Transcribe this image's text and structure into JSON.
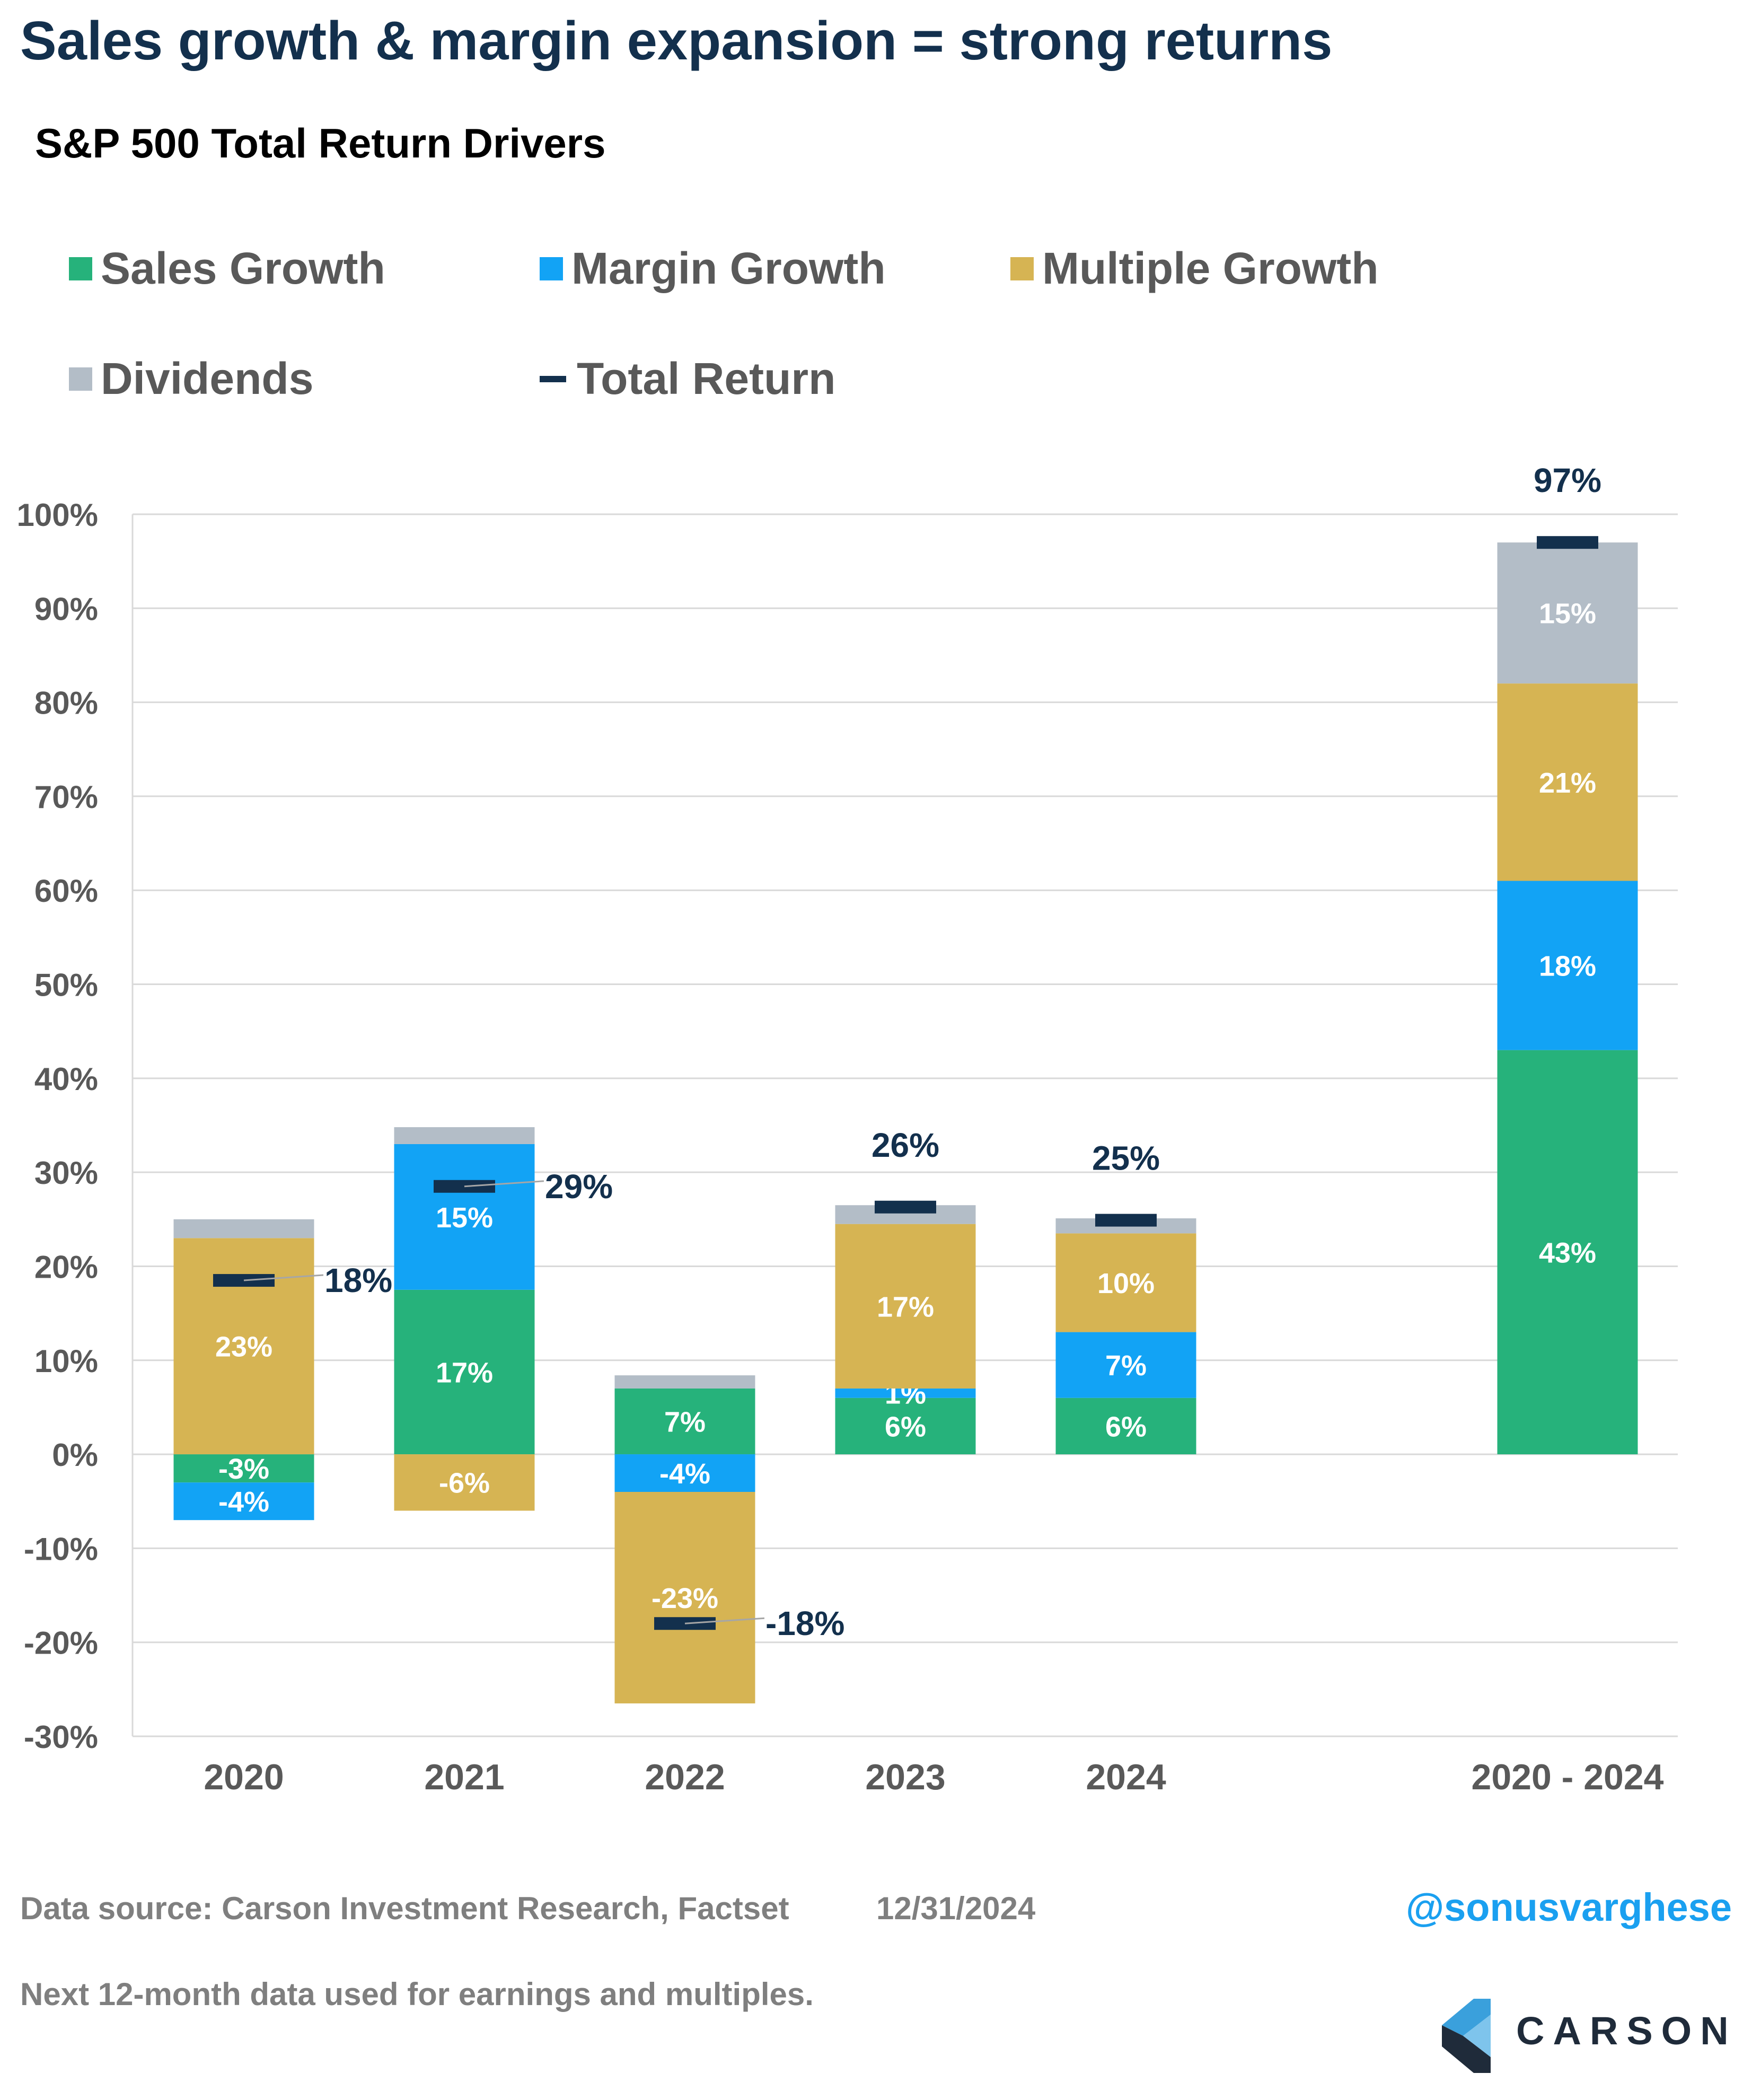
{
  "title": "Sales growth & margin expansion = strong returns",
  "subtitle": "S&P 500 Total Return Drivers",
  "legend": [
    {
      "label": "Sales Growth",
      "color": "#26b27b",
      "kind": "box"
    },
    {
      "label": "Margin Growth",
      "color": "#12a3f5",
      "kind": "box"
    },
    {
      "label": "Multiple Growth",
      "color": "#d6b453",
      "kind": "box"
    },
    {
      "label": "Dividends",
      "color": "#b3bdc7",
      "kind": "box"
    },
    {
      "label": "Total Return",
      "color": "#13304d",
      "kind": "dash"
    }
  ],
  "chart_data": {
    "type": "bar",
    "stacked": true,
    "categories": [
      "2020",
      "2021",
      "2022",
      "2023",
      "2024",
      "2020 - 2024"
    ],
    "series": [
      {
        "name": "Sales Growth",
        "color": "#26b27b",
        "values": [
          -3,
          17.5,
          7,
          6,
          6,
          43
        ],
        "labels": [
          "-3%",
          "17%",
          "7%",
          "6%",
          "6%",
          "43%"
        ]
      },
      {
        "name": "Margin Growth",
        "color": "#12a3f5",
        "values": [
          -4,
          15.5,
          -4,
          1,
          7,
          18
        ],
        "labels": [
          "-4%",
          "15%",
          "-4%",
          "1%",
          "7%",
          "18%"
        ]
      },
      {
        "name": "Multiple Growth",
        "color": "#d6b453",
        "values": [
          23,
          -6,
          -22.5,
          17.5,
          10.5,
          21
        ],
        "labels": [
          "23%",
          "-6%",
          "-23%",
          "17%",
          "10%",
          "21%"
        ]
      },
      {
        "name": "Dividends",
        "color": "#b3bdc7",
        "values": [
          2,
          1.8,
          1.4,
          2,
          1.6,
          15
        ],
        "labels": [
          "",
          "",
          "",
          "",
          "",
          "15%"
        ]
      }
    ],
    "total_return": {
      "name": "Total Return",
      "color": "#13304d",
      "values": [
        18.5,
        28.5,
        -18,
        26.3,
        24.9,
        97
      ],
      "labels": [
        "18%",
        "29%",
        "-18%",
        "26%",
        "25%",
        "97%"
      ]
    },
    "yaxis": {
      "ticks": [
        "100%",
        "90%",
        "80%",
        "70%",
        "60%",
        "50%",
        "40%",
        "30%",
        "20%",
        "10%",
        "0%",
        "-10%",
        "-20%",
        "-30%"
      ],
      "min": -30,
      "max": 100
    },
    "grid": true,
    "legend_position": "top"
  },
  "footer": {
    "source": "Data source: Carson Investment Research, Factset",
    "date": "12/31/2024",
    "handle": "@sonusvarghese",
    "note": "Next 12-month data used for earnings and multiples.",
    "logo_text": "CARSON"
  }
}
